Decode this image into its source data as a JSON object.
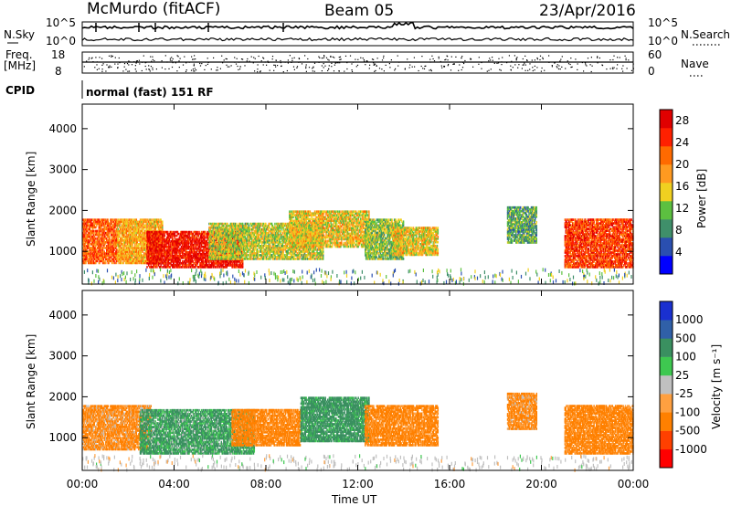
{
  "header": {
    "station": "McMurdo (fitACF)",
    "beam": "Beam 05",
    "date": "23/Apr/2016"
  },
  "top_panels": {
    "nsky_label": "N.Sky",
    "nsky_scale_top": "10^5",
    "nsky_scale_bottom": "10^0",
    "nsearch_label": "N.Search",
    "nsearch_scale_top": "10^5",
    "nsearch_scale_bottom": "10^0",
    "freq_label": "Freq.",
    "freq_unit": "[MHz]",
    "freq_top": "18",
    "freq_bottom": "8",
    "nave_label": "Nave",
    "nave_top": "60",
    "nave_bottom": "0",
    "cpid_label": "CPID",
    "cpid_text": "normal (fast) 151 RF"
  },
  "colors": {
    "power_scale": [
      "#0000ff",
      "#2a4fb0",
      "#3f8f6a",
      "#5cc040",
      "#f0d020",
      "#ff9a20",
      "#ff6a00",
      "#ff2000",
      "#e00000"
    ],
    "velocity_scale": [
      "#ff0000",
      "#ff4000",
      "#ff8000",
      "#ffa040",
      "#c0c0c0",
      "#3ec850",
      "#3a9060",
      "#3060a8",
      "#1a30d0"
    ]
  },
  "chart_data": [
    {
      "type": "heatmap",
      "quantity": "power",
      "ylabel": "Slant Range [km]",
      "xlabel": "Time UT",
      "xlim": [
        0,
        24
      ],
      "ylim": [
        200,
        4600
      ],
      "x_ticks": [
        "00:00",
        "04:00",
        "08:00",
        "12:00",
        "16:00",
        "20:00",
        "00:00"
      ],
      "y_ticks": [
        1000,
        2000,
        3000,
        4000
      ],
      "colorbar": {
        "label": "Power [dB]",
        "ticks": [
          "4",
          "8",
          "12",
          "16",
          "20",
          "24",
          "28"
        ],
        "range": [
          0,
          30
        ]
      },
      "regions": [
        {
          "t0": 0.0,
          "t1": 1.5,
          "r0": 700,
          "r1": 1800,
          "value": 22
        },
        {
          "t0": 1.5,
          "t1": 3.5,
          "r0": 700,
          "r1": 1800,
          "value": 18
        },
        {
          "t0": 2.8,
          "t1": 7.0,
          "r0": 600,
          "r1": 1500,
          "value": 27
        },
        {
          "t0": 5.5,
          "t1": 10.5,
          "r0": 800,
          "r1": 1700,
          "value": 14
        },
        {
          "t0": 9.0,
          "t1": 12.5,
          "r0": 1100,
          "r1": 2000,
          "value": 16
        },
        {
          "t0": 12.3,
          "t1": 14.0,
          "r0": 800,
          "r1": 1800,
          "value": 12
        },
        {
          "t0": 13.5,
          "t1": 15.5,
          "r0": 900,
          "r1": 1600,
          "value": 16
        },
        {
          "t0": 18.5,
          "t1": 19.8,
          "r0": 1200,
          "r1": 2100,
          "value": 10
        },
        {
          "t0": 21.0,
          "t1": 24.0,
          "r0": 600,
          "r1": 1800,
          "value": 24
        }
      ]
    },
    {
      "type": "heatmap",
      "quantity": "velocity",
      "ylabel": "Slant Range [km]",
      "xlabel": "Time UT",
      "xlim": [
        0,
        24
      ],
      "ylim": [
        200,
        4600
      ],
      "x_ticks": [
        "00:00",
        "04:00",
        "08:00",
        "12:00",
        "16:00",
        "20:00",
        "00:00"
      ],
      "y_ticks": [
        1000,
        2000,
        3000,
        4000
      ],
      "colorbar": {
        "label": "Velocity [m s⁻¹]",
        "ticks": [
          "1000",
          "500",
          "100",
          "25",
          "-25",
          "-100",
          "-500",
          "-1000"
        ]
      },
      "regions": [
        {
          "t0": 0.0,
          "t1": 3.0,
          "r0": 700,
          "r1": 1800,
          "value": -150
        },
        {
          "t0": 2.5,
          "t1": 7.5,
          "r0": 600,
          "r1": 1700,
          "value": 150
        },
        {
          "t0": 6.5,
          "t1": 9.5,
          "r0": 800,
          "r1": 1700,
          "value": -200
        },
        {
          "t0": 9.5,
          "t1": 12.5,
          "r0": 900,
          "r1": 2000,
          "value": 200
        },
        {
          "t0": 12.3,
          "t1": 15.5,
          "r0": 800,
          "r1": 1800,
          "value": -200
        },
        {
          "t0": 18.5,
          "t1": 19.8,
          "r0": 1200,
          "r1": 2100,
          "value": -150
        },
        {
          "t0": 21.0,
          "t1": 24.0,
          "r0": 600,
          "r1": 1800,
          "value": -200
        }
      ]
    }
  ]
}
